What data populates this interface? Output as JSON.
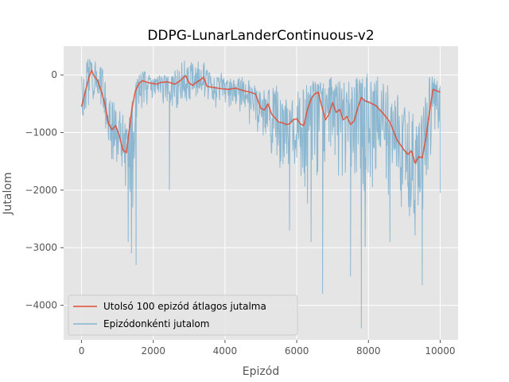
{
  "chart_data": {
    "type": "line",
    "title": "DDPG-LunarLanderContinuous-v2",
    "xlabel": "Epizód",
    "ylabel": "Jutalom",
    "xlim": [
      -500,
      10500
    ],
    "ylim": [
      -4600,
      500
    ],
    "xticks": [
      0,
      2000,
      4000,
      6000,
      8000,
      10000
    ],
    "yticks": [
      0,
      -1000,
      -2000,
      -3000,
      -4000
    ],
    "grid": true,
    "legend_position": "lower-left",
    "series": [
      {
        "name": "Utolsó 100 epizód átlagos jutalma",
        "color": "#E24A33",
        "style": "smoothed-mean",
        "x": [
          0,
          100,
          200,
          280,
          350,
          450,
          550,
          650,
          750,
          850,
          950,
          1050,
          1150,
          1250,
          1300,
          1400,
          1500,
          1600,
          1700,
          1800,
          1900,
          2000,
          2100,
          2200,
          2400,
          2600,
          2750,
          2900,
          3000,
          3100,
          3200,
          3300,
          3400,
          3500,
          3700,
          3900,
          4100,
          4300,
          4500,
          4700,
          4850,
          5000,
          5100,
          5200,
          5300,
          5400,
          5500,
          5600,
          5700,
          5800,
          5900,
          6000,
          6100,
          6200,
          6300,
          6400,
          6500,
          6600,
          6700,
          6800,
          6900,
          7000,
          7100,
          7200,
          7300,
          7400,
          7500,
          7600,
          7700,
          7800,
          7900,
          8000,
          8200,
          8400,
          8600,
          8800,
          9000,
          9100,
          9200,
          9300,
          9400,
          9500,
          9600,
          9700,
          9800,
          10000
        ],
        "y": [
          -550,
          -300,
          -50,
          80,
          -20,
          -100,
          -280,
          -500,
          -850,
          -950,
          -880,
          -1050,
          -1300,
          -1350,
          -1100,
          -600,
          -280,
          -150,
          -100,
          -120,
          -140,
          -150,
          -160,
          -130,
          -120,
          -160,
          -100,
          -10,
          -140,
          -180,
          -130,
          -90,
          -40,
          -200,
          -220,
          -240,
          -250,
          -230,
          -270,
          -300,
          -330,
          -580,
          -610,
          -500,
          -680,
          -750,
          -820,
          -830,
          -860,
          -850,
          -780,
          -760,
          -850,
          -880,
          -600,
          -420,
          -330,
          -300,
          -550,
          -780,
          -680,
          -480,
          -650,
          -600,
          -780,
          -720,
          -860,
          -800,
          -580,
          -390,
          -450,
          -470,
          -530,
          -660,
          -820,
          -1130,
          -1310,
          -1380,
          -1320,
          -1530,
          -1420,
          -1440,
          -1100,
          -660,
          -250,
          -300
        ]
      },
      {
        "name": "Epizódonkénti jutalom",
        "color": "#348ABD",
        "style": "noisy-band",
        "x": [
          0,
          100,
          200,
          300,
          400,
          500,
          600,
          700,
          800,
          900,
          1000,
          1100,
          1200,
          1300,
          1400,
          1500,
          1600,
          1700,
          1800,
          1900,
          2000,
          2200,
          2400,
          2600,
          2800,
          3000,
          3200,
          3400,
          3600,
          3800,
          4000,
          4200,
          4400,
          4600,
          4800,
          5000,
          5200,
          5400,
          5600,
          5800,
          6000,
          6200,
          6400,
          6600,
          6800,
          7000,
          7200,
          7400,
          7600,
          7800,
          8000,
          8200,
          8400,
          8600,
          8800,
          9000,
          9100,
          9200,
          9300,
          9400,
          9500,
          9600,
          9700,
          9800,
          9900,
          10000
        ],
        "upper": [
          0,
          260,
          300,
          280,
          280,
          250,
          100,
          -150,
          -300,
          -350,
          -400,
          -500,
          -700,
          -700,
          -500,
          -150,
          0,
          100,
          50,
          0,
          -50,
          0,
          0,
          100,
          280,
          270,
          250,
          250,
          100,
          80,
          0,
          -50,
          0,
          -50,
          -150,
          -300,
          -200,
          -100,
          -350,
          -450,
          -250,
          -200,
          -50,
          -50,
          -150,
          0,
          -50,
          -100,
          -100,
          50,
          50,
          0,
          -100,
          -150,
          -300,
          -450,
          -500,
          -650,
          -700,
          -800,
          -600,
          -150,
          0,
          0,
          0,
          -50
        ],
        "lower": [
          -950,
          -800,
          -700,
          -650,
          -700,
          -900,
          -1200,
          -1350,
          -1500,
          -1650,
          -1650,
          -1900,
          -2300,
          -2500,
          -3300,
          -1700,
          -1200,
          -750,
          -650,
          -700,
          -600,
          -650,
          -650,
          -800,
          -700,
          -550,
          -500,
          -500,
          -600,
          -650,
          -650,
          -700,
          -750,
          -850,
          -1050,
          -1150,
          -1550,
          -1700,
          -2050,
          -2150,
          -1800,
          -2450,
          -2550,
          -2800,
          -2300,
          -1950,
          -2150,
          -2300,
          -2450,
          -4400,
          -2400,
          -2100,
          -2000,
          -2150,
          -2100,
          -2700,
          -3050,
          -3300,
          -3250,
          -3850,
          -3700,
          -2700,
          -1850,
          -1500,
          -1400,
          -2050
        ],
        "spikes": [
          [
            1300,
            -2900
          ],
          [
            1520,
            -3300
          ],
          [
            2450,
            -2000
          ],
          [
            5800,
            -2700
          ],
          [
            6400,
            -2900
          ],
          [
            6720,
            -3800
          ],
          [
            7500,
            -3500
          ],
          [
            7800,
            -4400
          ],
          [
            8600,
            -2900
          ],
          [
            9500,
            -3650
          ],
          [
            10000,
            -2050
          ]
        ]
      }
    ]
  }
}
